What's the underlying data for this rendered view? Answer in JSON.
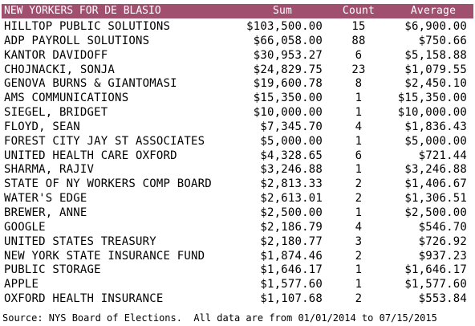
{
  "header": {
    "title": "NEW YORKERS FOR DE BLASIO",
    "col_sum": "Sum",
    "col_count": "Count",
    "col_average": "Average"
  },
  "header_color": "#a0506e",
  "rows": [
    {
      "name": "HILLTOP PUBLIC SOLUTIONS",
      "sum": "$103,500.00",
      "count": "15",
      "average": "$6,900.00"
    },
    {
      "name": "ADP PAYROLL SOLUTIONS",
      "sum": "$66,058.00",
      "count": "88",
      "average": "$750.66"
    },
    {
      "name": "KANTOR DAVIDOFF",
      "sum": "$30,953.27",
      "count": "6",
      "average": "$5,158.88"
    },
    {
      "name": "CHOJNACKI, SONJA",
      "sum": "$24,829.75",
      "count": "23",
      "average": "$1,079.55"
    },
    {
      "name": "GENOVA BURNS & GIANTOMASI",
      "sum": "$19,600.78",
      "count": "8",
      "average": "$2,450.10"
    },
    {
      "name": "AMS COMMUNICATIONS",
      "sum": "$15,350.00",
      "count": "1",
      "average": "$15,350.00"
    },
    {
      "name": "SIEGEL, BRIDGET",
      "sum": "$10,000.00",
      "count": "1",
      "average": "$10,000.00"
    },
    {
      "name": "FLOYD, SEAN",
      "sum": "$7,345.70",
      "count": "4",
      "average": "$1,836.43"
    },
    {
      "name": "FOREST CITY JAY ST ASSOCIATES",
      "sum": "$5,000.00",
      "count": "1",
      "average": "$5,000.00"
    },
    {
      "name": "UNITED HEALTH CARE OXFORD",
      "sum": "$4,328.65",
      "count": "6",
      "average": "$721.44"
    },
    {
      "name": "SHARMA, RAJIV",
      "sum": "$3,246.88",
      "count": "1",
      "average": "$3,246.88"
    },
    {
      "name": "STATE OF NY WORKERS COMP BOARD",
      "sum": "$2,813.33",
      "count": "2",
      "average": "$1,406.67"
    },
    {
      "name": "WATER'S EDGE",
      "sum": "$2,613.01",
      "count": "2",
      "average": "$1,306.51"
    },
    {
      "name": "BREWER, ANNE",
      "sum": "$2,500.00",
      "count": "1",
      "average": "$2,500.00"
    },
    {
      "name": "GOOGLE",
      "sum": "$2,186.79",
      "count": "4",
      "average": "$546.70"
    },
    {
      "name": "UNITED STATES TREASURY",
      "sum": "$2,180.77",
      "count": "3",
      "average": "$726.92"
    },
    {
      "name": "NEW YORK STATE INSURANCE FUND",
      "sum": "$1,874.46",
      "count": "2",
      "average": "$937.23"
    },
    {
      "name": "PUBLIC STORAGE",
      "sum": "$1,646.17",
      "count": "1",
      "average": "$1,646.17"
    },
    {
      "name": "APPLE",
      "sum": "$1,577.60",
      "count": "1",
      "average": "$1,577.60"
    },
    {
      "name": "OXFORD HEALTH INSURANCE",
      "sum": "$1,107.68",
      "count": "2",
      "average": "$553.84"
    }
  ],
  "footer": {
    "source": "Source: NYS Board of Elections.  All data are from 01/01/2014 to 07/15/2015"
  }
}
